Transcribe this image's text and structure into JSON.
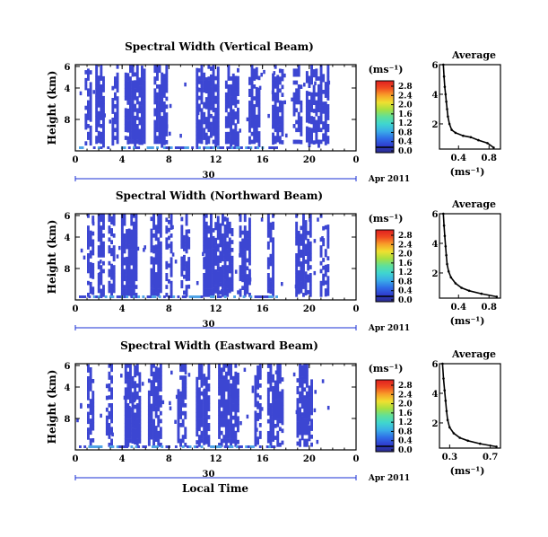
{
  "x_axis_label": "Local Time",
  "date_label": "Apr 2011",
  "day_marker": "30",
  "colorbar_unit": "(ms⁻¹)",
  "avg_unit": "(ms⁻¹)",
  "colors": {
    "cell_main": "#3c46d2",
    "cell_light": "#4fa3e6",
    "colorbar_stops": [
      "#2a2a8a",
      "#2f3fd0",
      "#2f6fe8",
      "#3aaee8",
      "#3fd6d0",
      "#5fe09a",
      "#a8e040",
      "#f0e030",
      "#f8a028",
      "#f04a20",
      "#e02020"
    ],
    "date_axis": "#1a2fd6"
  },
  "chart_data": [
    {
      "type": "heatmap",
      "title": "Spectral Width (Vertical Beam)",
      "xlabel": "",
      "ylabel": "Height (km)",
      "x_ticks": [
        "0",
        "4",
        "8",
        "12",
        "16",
        "20",
        "0"
      ],
      "y_ticks": [
        "8",
        "4",
        "6"
      ],
      "xlim": [
        0,
        24
      ],
      "colorbar_ticks": [
        "0.0",
        "0.4",
        "0.8",
        "1.2",
        "1.6",
        "2.0",
        "2.4",
        "2.8"
      ],
      "data_columns": [
        {
          "from": 0.8,
          "to": 1.3,
          "density": 0.7
        },
        {
          "from": 1.7,
          "to": 2.4,
          "density": 0.85
        },
        {
          "from": 3.1,
          "to": 3.6,
          "density": 0.7
        },
        {
          "from": 4.2,
          "to": 5.8,
          "density": 0.9
        },
        {
          "from": 6.7,
          "to": 7.8,
          "density": 0.85
        },
        {
          "from": 10.3,
          "to": 12.2,
          "density": 0.85
        },
        {
          "from": 12.8,
          "to": 14.0,
          "density": 0.8
        },
        {
          "from": 14.8,
          "to": 15.8,
          "density": 0.8
        },
        {
          "from": 16.8,
          "to": 17.8,
          "density": 0.8
        },
        {
          "from": 18.6,
          "to": 19.3,
          "density": 0.6
        },
        {
          "from": 19.7,
          "to": 21.7,
          "density": 0.75
        }
      ],
      "average": {
        "title": "Average",
        "x_ticks": [
          "0.4",
          "0.8"
        ],
        "xlim": [
          0.15,
          0.95
        ],
        "y_ticks": [
          "2",
          "4",
          "6"
        ],
        "ylim": [
          0.3,
          6
        ],
        "x": [
          0.86,
          0.78,
          0.66,
          0.56,
          0.46,
          0.36,
          0.31,
          0.28,
          0.26,
          0.25,
          0.24,
          0.23,
          0.22,
          0.21,
          0.2
        ],
        "y": [
          0.4,
          0.7,
          0.9,
          1.1,
          1.2,
          1.4,
          1.6,
          2.0,
          2.5,
          3.0,
          3.5,
          4.0,
          4.5,
          5.2,
          6.0
        ]
      }
    },
    {
      "type": "heatmap",
      "title": "Spectral Width (Northward Beam)",
      "xlabel": "",
      "ylabel": "Height (km)",
      "x_ticks": [
        "0",
        "4",
        "8",
        "12",
        "16",
        "20",
        "0"
      ],
      "y_ticks": [
        "8",
        "4",
        "6"
      ],
      "xlim": [
        0,
        24
      ],
      "colorbar_ticks": [
        "0.0",
        "0.4",
        "0.8",
        "1.2",
        "1.6",
        "2.0",
        "2.4",
        "2.8"
      ],
      "data_columns": [
        {
          "from": 1.0,
          "to": 1.5,
          "density": 0.75
        },
        {
          "from": 1.9,
          "to": 2.5,
          "density": 0.8
        },
        {
          "from": 2.8,
          "to": 3.4,
          "density": 0.7
        },
        {
          "from": 3.9,
          "to": 5.1,
          "density": 0.9
        },
        {
          "from": 6.4,
          "to": 7.2,
          "density": 0.85
        },
        {
          "from": 7.7,
          "to": 8.2,
          "density": 0.6
        },
        {
          "from": 9.0,
          "to": 9.7,
          "density": 0.7
        },
        {
          "from": 10.9,
          "to": 13.4,
          "density": 0.95
        },
        {
          "from": 14.0,
          "to": 15.0,
          "density": 0.85
        },
        {
          "from": 16.4,
          "to": 17.0,
          "density": 0.8
        },
        {
          "from": 18.8,
          "to": 20.2,
          "density": 0.9
        },
        {
          "from": 20.9,
          "to": 21.6,
          "density": 0.6
        }
      ],
      "average": {
        "title": "Average",
        "x_ticks": [
          "0.4",
          "0.8"
        ],
        "xlim": [
          0.15,
          0.95
        ],
        "y_ticks": [
          "2",
          "4",
          "6"
        ],
        "ylim": [
          0.3,
          6
        ],
        "x": [
          0.9,
          0.7,
          0.54,
          0.44,
          0.36,
          0.3,
          0.27,
          0.25,
          0.24,
          0.23,
          0.22,
          0.21,
          0.2
        ],
        "y": [
          0.4,
          0.6,
          0.8,
          1.0,
          1.3,
          1.7,
          2.1,
          2.6,
          3.2,
          3.8,
          4.5,
          5.2,
          6.0
        ]
      }
    },
    {
      "type": "heatmap",
      "title": "Spectral Width (Eastward Beam)",
      "xlabel": "Local Time",
      "ylabel": "Height (km)",
      "x_ticks": [
        "0",
        "4",
        "8",
        "12",
        "16",
        "20",
        "0"
      ],
      "y_ticks": [
        "8",
        "4",
        "6"
      ],
      "xlim": [
        0,
        24
      ],
      "colorbar_ticks": [
        "0.0",
        "0.4",
        "0.8",
        "1.2",
        "1.6",
        "2.0",
        "2.4",
        "2.8"
      ],
      "data_columns": [
        {
          "from": 1.0,
          "to": 1.5,
          "density": 0.75
        },
        {
          "from": 2.6,
          "to": 3.2,
          "density": 0.7
        },
        {
          "from": 4.2,
          "to": 5.4,
          "density": 0.9
        },
        {
          "from": 6.2,
          "to": 7.3,
          "density": 0.85
        },
        {
          "from": 8.7,
          "to": 9.3,
          "density": 0.7
        },
        {
          "from": 10.3,
          "to": 11.4,
          "density": 0.9
        },
        {
          "from": 12.2,
          "to": 13.8,
          "density": 0.85
        },
        {
          "from": 15.3,
          "to": 15.8,
          "density": 0.7
        },
        {
          "from": 16.4,
          "to": 17.7,
          "density": 0.8
        },
        {
          "from": 18.9,
          "to": 20.3,
          "density": 0.85
        }
      ],
      "average": {
        "title": "Average",
        "x_ticks": [
          "0.3",
          "0.7"
        ],
        "xlim": [
          0.2,
          0.8
        ],
        "y_ticks": [
          "2",
          "4",
          "6"
        ],
        "ylim": [
          0.3,
          6
        ],
        "x": [
          0.76,
          0.6,
          0.48,
          0.4,
          0.34,
          0.3,
          0.28,
          0.27,
          0.26,
          0.25,
          0.24,
          0.23
        ],
        "y": [
          0.4,
          0.6,
          0.8,
          1.0,
          1.3,
          1.7,
          2.2,
          2.8,
          3.5,
          4.2,
          5.0,
          6.0
        ]
      }
    }
  ]
}
